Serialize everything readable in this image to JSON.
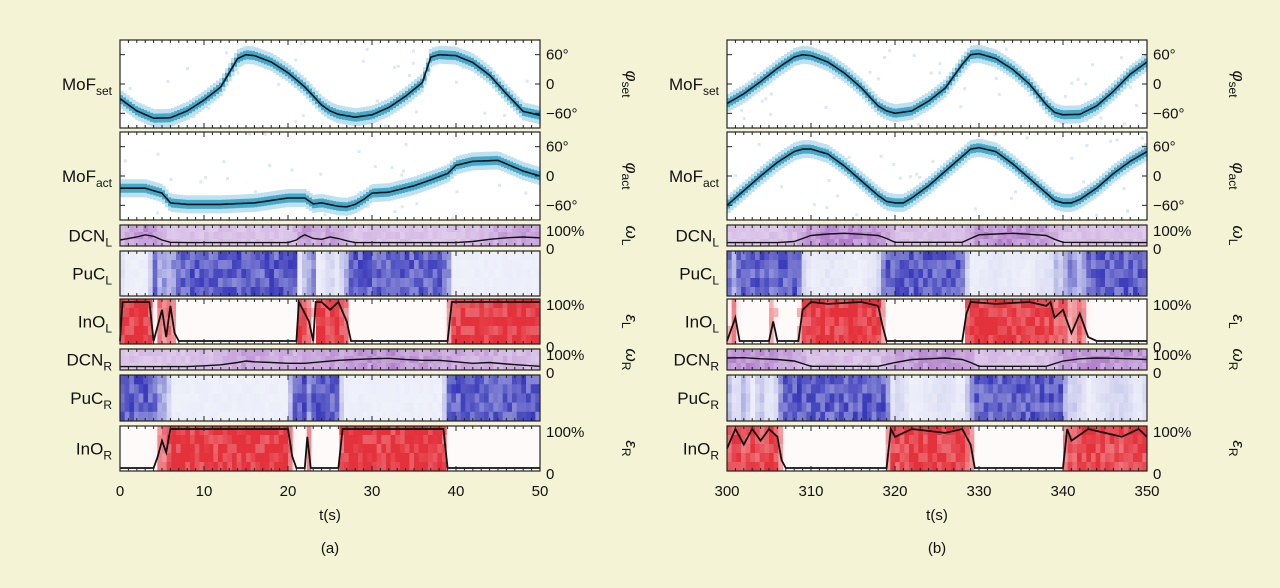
{
  "chart_data": [
    {
      "type": "heatmap",
      "panel_label": "(a)",
      "xlabel": "t(s)",
      "xlim": [
        0,
        50
      ],
      "xticks": [
        "0",
        "10",
        "20",
        "30",
        "40",
        "50"
      ],
      "rows": [
        {
          "label": "MoF",
          "sub": "set",
          "greek": "φ",
          "gsub": "set",
          "ticks": [
            "60°",
            "0",
            "−60°"
          ],
          "ylim": [
            -90,
            90
          ],
          "t": [
            0,
            2,
            4,
            6,
            8,
            10,
            12,
            14,
            15,
            16,
            18,
            20,
            22,
            24,
            25,
            26,
            28,
            30,
            32,
            34,
            36,
            37,
            38,
            40,
            42,
            44,
            46,
            48,
            50
          ],
          "y": [
            -30,
            -55,
            -70,
            -69,
            -55,
            -33,
            -6,
            52,
            60,
            58,
            45,
            23,
            -6,
            -43,
            -55,
            -62,
            -68,
            -63,
            -48,
            -25,
            3,
            55,
            60,
            58,
            44,
            18,
            -20,
            -56,
            -64
          ]
        },
        {
          "label": "MoF",
          "sub": "act",
          "greek": "φ",
          "gsub": "act",
          "ticks": [
            "60°",
            "0",
            "−60°"
          ],
          "ylim": [
            -90,
            90
          ],
          "t": [
            0,
            3,
            5,
            6,
            8,
            12,
            16,
            20,
            22,
            23,
            24,
            26,
            27,
            28,
            29,
            30,
            32,
            35,
            37,
            39,
            40,
            42,
            45,
            48,
            50
          ],
          "y": [
            -25,
            -25,
            -35,
            -55,
            -58,
            -58,
            -55,
            -45,
            -45,
            -57,
            -55,
            -62,
            -63,
            -58,
            -48,
            -35,
            -33,
            -20,
            -8,
            5,
            22,
            30,
            32,
            10,
            0
          ]
        },
        {
          "label": "DCN",
          "sub": "L",
          "greek": "ω",
          "gsub": "L",
          "ticks": [
            "100%",
            "0"
          ],
          "ylim": [
            0,
            100
          ],
          "color": "purple",
          "t": [
            0,
            2,
            3,
            4,
            5,
            6,
            8,
            20,
            21,
            21.5,
            22,
            23,
            24,
            25,
            26,
            27,
            28,
            40,
            42,
            44,
            46,
            48,
            50
          ],
          "y": [
            20,
            40,
            55,
            45,
            20,
            5,
            3,
            3,
            20,
            40,
            55,
            30,
            25,
            40,
            30,
            15,
            3,
            3,
            10,
            25,
            35,
            40,
            35
          ]
        },
        {
          "label": "PuC",
          "sub": "L",
          "ticks": [],
          "color": "blue"
        },
        {
          "label": "InO",
          "sub": "L",
          "greek": "ε",
          "gsub": "L",
          "ticks": [
            "100%",
            "0"
          ],
          "ylim": [
            0,
            100
          ],
          "color": "red",
          "t": [
            0,
            0.3,
            3.5,
            4,
            5,
            5.5,
            6,
            6.5,
            7,
            21,
            21.3,
            22.5,
            23,
            23.3,
            24,
            25,
            26,
            27,
            27.5,
            39,
            39.5,
            50
          ],
          "y": [
            0,
            100,
            100,
            0,
            80,
            10,
            90,
            20,
            0,
            0,
            100,
            50,
            0,
            100,
            100,
            80,
            100,
            50,
            0,
            0,
            100,
            100
          ]
        },
        {
          "label": "DCN",
          "sub": "R",
          "greek": "ω",
          "gsub": "R",
          "ticks": [
            "100%",
            "0"
          ],
          "ylim": [
            0,
            100
          ],
          "color": "purple",
          "t": [
            0,
            8,
            10,
            12,
            14,
            15,
            16,
            18,
            20,
            22,
            24,
            26,
            28,
            30,
            32,
            34,
            36,
            38,
            40,
            42,
            44,
            46,
            48,
            50
          ],
          "y": [
            3,
            3,
            8,
            15,
            30,
            40,
            35,
            30,
            25,
            25,
            35,
            45,
            50,
            55,
            58,
            50,
            45,
            45,
            35,
            25,
            30,
            20,
            12,
            5
          ]
        },
        {
          "label": "PuC",
          "sub": "R",
          "ticks": [],
          "color": "blue"
        },
        {
          "label": "InO",
          "sub": "R",
          "greek": "ε",
          "gsub": "R",
          "ticks": [
            "100%",
            "0"
          ],
          "ylim": [
            0,
            100
          ],
          "color": "red",
          "t": [
            0,
            4,
            4.5,
            5,
            5.5,
            6,
            6.5,
            20,
            20.5,
            21,
            22,
            22.3,
            22.7,
            23,
            26,
            26.5,
            27,
            38.5,
            39,
            50
          ],
          "y": [
            0,
            0,
            30,
            70,
            40,
            100,
            100,
            100,
            30,
            0,
            0,
            80,
            0,
            0,
            0,
            100,
            100,
            100,
            0,
            0
          ]
        }
      ]
    },
    {
      "type": "heatmap",
      "panel_label": "(b)",
      "xlabel": "t(s)",
      "xlim": [
        300,
        350
      ],
      "xticks": [
        "300",
        "310",
        "320",
        "330",
        "340",
        "350"
      ],
      "rows": [
        {
          "label": "MoF",
          "sub": "set",
          "greek": "φ",
          "gsub": "set",
          "ticks": [
            "60°",
            "0",
            "−60°"
          ],
          "ylim": [
            -90,
            90
          ],
          "t": [
            300,
            302,
            304,
            306,
            308,
            309,
            310,
            312,
            314,
            316,
            318,
            319,
            320,
            322,
            324,
            326,
            328,
            329,
            330,
            332,
            334,
            336,
            338,
            339,
            340,
            342,
            344,
            346,
            348,
            350
          ],
          "y": [
            -40,
            -20,
            5,
            32,
            55,
            60,
            58,
            45,
            22,
            -8,
            -45,
            -55,
            -60,
            -55,
            -35,
            -8,
            40,
            60,
            62,
            52,
            30,
            0,
            -42,
            -58,
            -63,
            -62,
            -45,
            -15,
            20,
            45
          ]
        },
        {
          "label": "MoF",
          "sub": "act",
          "greek": "φ",
          "gsub": "act",
          "ticks": [
            "60°",
            "0",
            "−60°"
          ],
          "ylim": [
            -90,
            90
          ],
          "t": [
            300,
            302,
            304,
            306,
            308,
            309,
            310,
            312,
            314,
            316,
            318,
            319,
            320,
            321,
            322,
            324,
            326,
            328,
            329,
            330,
            332,
            334,
            336,
            338,
            339,
            340,
            341,
            342,
            344,
            346,
            348,
            350
          ],
          "y": [
            -60,
            -30,
            0,
            28,
            50,
            55,
            55,
            45,
            20,
            -10,
            -40,
            -52,
            -55,
            -55,
            -45,
            -20,
            10,
            40,
            55,
            58,
            50,
            25,
            -5,
            -35,
            -50,
            -55,
            -55,
            -48,
            -25,
            5,
            30,
            50
          ]
        },
        {
          "label": "DCN",
          "sub": "L",
          "greek": "ω",
          "gsub": "L",
          "ticks": [
            "100%",
            "0"
          ],
          "ylim": [
            0,
            100
          ],
          "color": "purple",
          "t": [
            300,
            306,
            308,
            309,
            310,
            312,
            314,
            316,
            318,
            319,
            320,
            328,
            329,
            330,
            332,
            334,
            336,
            338,
            339,
            340,
            350
          ],
          "y": [
            3,
            3,
            10,
            30,
            50,
            60,
            65,
            58,
            50,
            30,
            5,
            5,
            30,
            55,
            60,
            65,
            58,
            50,
            25,
            5,
            3
          ]
        },
        {
          "label": "PuC",
          "sub": "L",
          "ticks": [],
          "color": "blue"
        },
        {
          "label": "InO",
          "sub": "L",
          "greek": "ε",
          "gsub": "L",
          "ticks": [
            "100%",
            "0"
          ],
          "ylim": [
            0,
            100
          ],
          "color": "red",
          "t": [
            300,
            301,
            301.5,
            302,
            305,
            305.5,
            306,
            308.5,
            309,
            310,
            312,
            316,
            318,
            318.5,
            319,
            328,
            328.5,
            329,
            332,
            336,
            338,
            338.5,
            339,
            340,
            341,
            342,
            343,
            344,
            350
          ],
          "y": [
            0,
            60,
            0,
            0,
            0,
            50,
            0,
            0,
            80,
            100,
            95,
            100,
            90,
            40,
            0,
            0,
            70,
            100,
            95,
            100,
            90,
            100,
            60,
            80,
            20,
            70,
            10,
            0,
            0
          ]
        },
        {
          "label": "DCN",
          "sub": "R",
          "greek": "ω",
          "gsub": "R",
          "ticks": [
            "100%",
            "0"
          ],
          "ylim": [
            0,
            100
          ],
          "color": "purple",
          "t": [
            300,
            302,
            304,
            306,
            308,
            310,
            318,
            320,
            322,
            324,
            326,
            328,
            329,
            330,
            338,
            340,
            342,
            344,
            346,
            348,
            350
          ],
          "y": [
            60,
            62,
            55,
            50,
            40,
            5,
            5,
            30,
            50,
            55,
            60,
            50,
            30,
            5,
            5,
            40,
            55,
            60,
            58,
            55,
            50
          ]
        },
        {
          "label": "PuC",
          "sub": "R",
          "ticks": [],
          "color": "blue"
        },
        {
          "label": "InO",
          "sub": "R",
          "greek": "ε",
          "gsub": "R",
          "ticks": [
            "100%",
            "0"
          ],
          "ylim": [
            0,
            100
          ],
          "color": "red",
          "t": [
            300,
            301,
            302,
            303,
            304,
            305,
            306,
            306.5,
            307,
            319,
            319.5,
            320,
            322,
            326,
            328,
            329,
            329.5,
            340,
            340.5,
            341,
            343,
            347,
            349,
            350
          ],
          "y": [
            50,
            100,
            60,
            100,
            70,
            100,
            80,
            20,
            0,
            0,
            100,
            80,
            100,
            90,
            100,
            60,
            0,
            0,
            100,
            70,
            100,
            80,
            100,
            80
          ]
        }
      ]
    }
  ]
}
